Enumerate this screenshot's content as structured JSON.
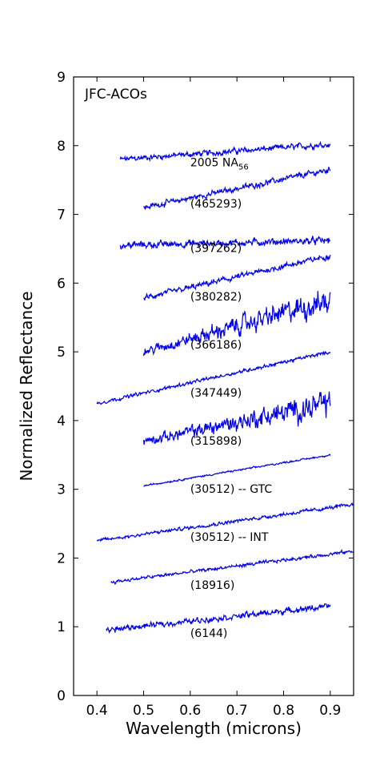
{
  "chart_data": {
    "type": "line",
    "title": "JFC-ACOs",
    "xlabel": "Wavelength (microns)",
    "ylabel": "Normalized Reflectance",
    "xlim": [
      0.35,
      0.95
    ],
    "ylim": [
      0,
      9
    ],
    "xticks": [
      "0.4",
      "0.5",
      "0.6",
      "0.7",
      "0.8",
      "0.9"
    ],
    "yticks": [
      "0",
      "1",
      "2",
      "3",
      "4",
      "5",
      "6",
      "7",
      "8",
      "9"
    ],
    "grid": false,
    "line_color": "#0000ee",
    "series": [
      {
        "name": "2005 NA",
        "name_sub": "56",
        "x_start": 0.45,
        "x_end": 0.9,
        "y_start": 7.8,
        "y_end": 8.02,
        "noise": 0.05,
        "label_x": 0.6,
        "label_y": 7.7
      },
      {
        "name": "(465293)",
        "x_start": 0.5,
        "x_end": 0.9,
        "y_start": 7.1,
        "y_end": 7.65,
        "noise": 0.05,
        "label_x": 0.6,
        "label_y": 7.1
      },
      {
        "name": "(397262)",
        "x_start": 0.45,
        "x_end": 0.9,
        "y_start": 6.55,
        "y_end": 6.62,
        "noise": 0.06,
        "label_x": 0.6,
        "label_y": 6.45
      },
      {
        "name": "(380282)",
        "x_start": 0.5,
        "x_end": 0.9,
        "y_start": 5.78,
        "y_end": 6.4,
        "noise": 0.05,
        "label_x": 0.6,
        "label_y": 5.75
      },
      {
        "name": "(366186)",
        "x_start": 0.5,
        "x_end": 0.9,
        "y_start": 5.0,
        "y_end": 5.75,
        "noise": 0.14,
        "label_x": 0.6,
        "label_y": 5.05
      },
      {
        "name": "(347449)",
        "x_start": 0.4,
        "x_end": 0.9,
        "y_start": 4.25,
        "y_end": 5.0,
        "noise": 0.03,
        "label_x": 0.6,
        "label_y": 4.35
      },
      {
        "name": "(315898)",
        "x_start": 0.5,
        "x_end": 0.9,
        "y_start": 3.7,
        "y_end": 4.25,
        "noise": 0.14,
        "label_x": 0.6,
        "label_y": 3.65
      },
      {
        "name": "(30512) -- GTC",
        "x_start": 0.5,
        "x_end": 0.9,
        "y_start": 3.05,
        "y_end": 3.5,
        "noise": 0.015,
        "label_x": 0.6,
        "label_y": 2.95
      },
      {
        "name": "(30512) -- INT",
        "x_start": 0.4,
        "x_end": 0.95,
        "y_start": 2.25,
        "y_end": 2.78,
        "noise": 0.03,
        "label_x": 0.6,
        "label_y": 2.25
      },
      {
        "name": "(18916)",
        "x_start": 0.43,
        "x_end": 0.95,
        "y_start": 1.65,
        "y_end": 2.1,
        "noise": 0.03,
        "label_x": 0.6,
        "label_y": 1.55
      },
      {
        "name": "(6144)",
        "x_start": 0.42,
        "x_end": 0.9,
        "y_start": 0.95,
        "y_end": 1.3,
        "noise": 0.05,
        "label_x": 0.6,
        "label_y": 0.85
      }
    ]
  }
}
